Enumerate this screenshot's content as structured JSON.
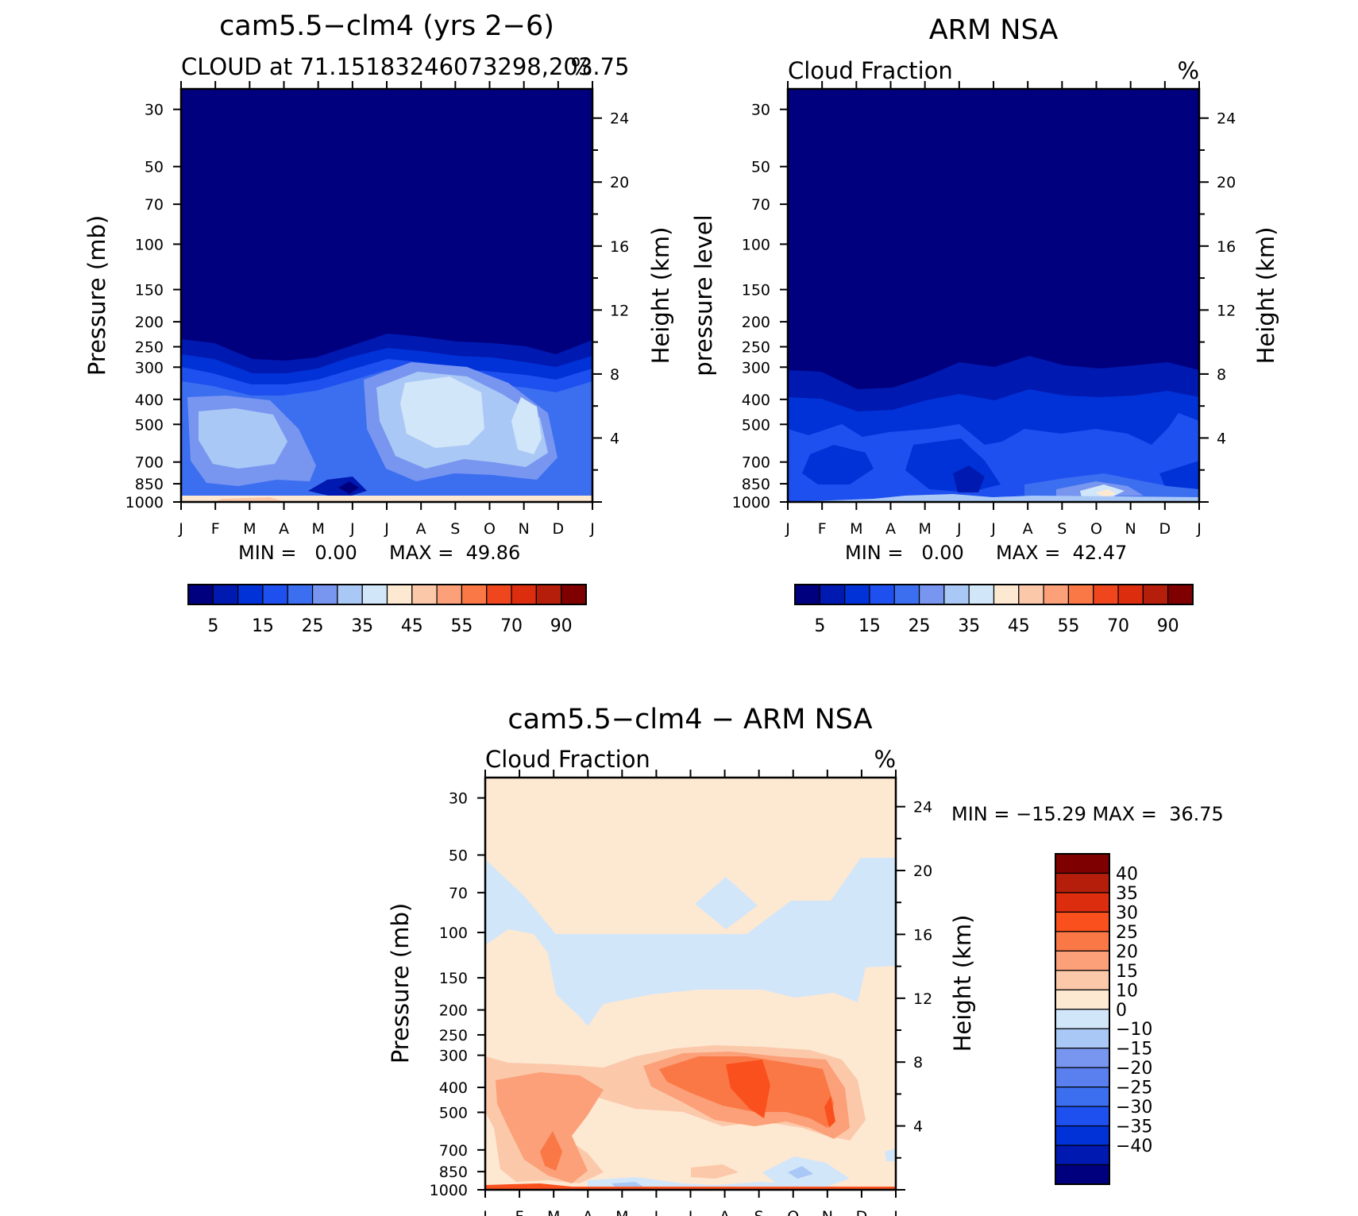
{
  "figure": {
    "colors": {
      "background": "#ffffff",
      "axis": "#000000"
    },
    "cloud_colorbar": {
      "fills": [
        "#00007f",
        "#0019b0",
        "#0032d8",
        "#1e50f0",
        "#3c6ef0",
        "#7896f0",
        "#aac8f5",
        "#d2e6fa",
        "#fde8d2",
        "#fcc8aa",
        "#fba078",
        "#fa7846",
        "#f0461e",
        "#dc2d0f",
        "#b41e0a",
        "#7f0000"
      ],
      "labels": [
        "5",
        "15",
        "25",
        "35",
        "45",
        "55",
        "70",
        "90"
      ]
    },
    "diff_colorbar": {
      "fills": [
        "#7f0000",
        "#b41e0a",
        "#dc2d0f",
        "#fa501e",
        "#fa7846",
        "#fba078",
        "#fcc8aa",
        "#fde8d2",
        "#d2e6fa",
        "#aac8f5",
        "#7896f0",
        "#5a80f0",
        "#3c6ef0",
        "#1e50f0",
        "#0032d8",
        "#0019b0",
        "#00007f"
      ],
      "labels": [
        "40",
        "35",
        "30",
        "25",
        "20",
        "15",
        "10",
        "0",
        "−10",
        "−15",
        "−20",
        "−25",
        "−30",
        "−35",
        "−40"
      ]
    }
  },
  "chart_data": [
    {
      "type": "heatmap",
      "title": "cam5.5−clm4 (yrs 2−6)",
      "subtitle_left": "CLOUD at 71.15183246073298,203.75",
      "subtitle_right": "%",
      "ylabel": "Pressure (mb)",
      "ylabel_right": "Height (km)",
      "x_ticks": [
        "J",
        "F",
        "M",
        "A",
        "M",
        "J",
        "J",
        "A",
        "S",
        "O",
        "N",
        "D",
        "J"
      ],
      "y_ticks": [
        "30",
        "50",
        "70",
        "100",
        "150",
        "200",
        "250",
        "300",
        "400",
        "500",
        "700",
        "850",
        "1000"
      ],
      "y_ticks_values": [
        30,
        50,
        70,
        100,
        150,
        200,
        250,
        300,
        400,
        500,
        700,
        850,
        1000
      ],
      "y_right_ticks": [
        "24",
        "20",
        "16",
        "12",
        "8",
        "4"
      ],
      "y_right_values": [
        24,
        20,
        16,
        12,
        8,
        4
      ],
      "ylim": [
        1000,
        25
      ],
      "min_label": "MIN =   0.00",
      "max_label": "MAX =  49.86",
      "min": 0.0,
      "max": 49.86,
      "units": "%"
    },
    {
      "type": "heatmap",
      "title": "ARM NSA",
      "subtitle_left": "Cloud Fraction",
      "subtitle_right": "%",
      "ylabel": "pressure level",
      "ylabel_right": "Height (km)",
      "x_ticks": [
        "J",
        "F",
        "M",
        "A",
        "M",
        "J",
        "J",
        "A",
        "S",
        "O",
        "N",
        "D",
        "J"
      ],
      "y_ticks": [
        "30",
        "50",
        "70",
        "100",
        "150",
        "200",
        "250",
        "300",
        "400",
        "500",
        "700",
        "850",
        "1000"
      ],
      "y_ticks_values": [
        30,
        50,
        70,
        100,
        150,
        200,
        250,
        300,
        400,
        500,
        700,
        850,
        1000
      ],
      "y_right_ticks": [
        "24",
        "20",
        "16",
        "12",
        "8",
        "4"
      ],
      "y_right_values": [
        24,
        20,
        16,
        12,
        8,
        4
      ],
      "ylim": [
        1000,
        25
      ],
      "min_label": "MIN =   0.00",
      "max_label": "MAX =  42.47",
      "min": 0.0,
      "max": 42.47,
      "units": "%"
    },
    {
      "type": "heatmap",
      "title": "cam5.5−clm4 − ARM NSA",
      "subtitle_left": "Cloud Fraction",
      "subtitle_right": "%",
      "ylabel": "Pressure (mb)",
      "ylabel_right": "Height (km)",
      "x_ticks": [
        "J",
        "F",
        "M",
        "A",
        "M",
        "J",
        "J",
        "A",
        "S",
        "O",
        "N",
        "D",
        "J"
      ],
      "y_ticks": [
        "30",
        "50",
        "70",
        "100",
        "150",
        "200",
        "250",
        "300",
        "400",
        "500",
        "700",
        "850",
        "1000"
      ],
      "y_ticks_values": [
        30,
        50,
        70,
        100,
        150,
        200,
        250,
        300,
        400,
        500,
        700,
        850,
        1000
      ],
      "y_right_ticks": [
        "24",
        "20",
        "16",
        "12",
        "8",
        "4"
      ],
      "y_right_values": [
        24,
        20,
        16,
        12,
        8,
        4
      ],
      "ylim": [
        1000,
        25
      ],
      "minmax_label": "MIN = −15.29 MAX =  36.75",
      "min": -15.29,
      "max": 36.75,
      "units": "%"
    }
  ]
}
